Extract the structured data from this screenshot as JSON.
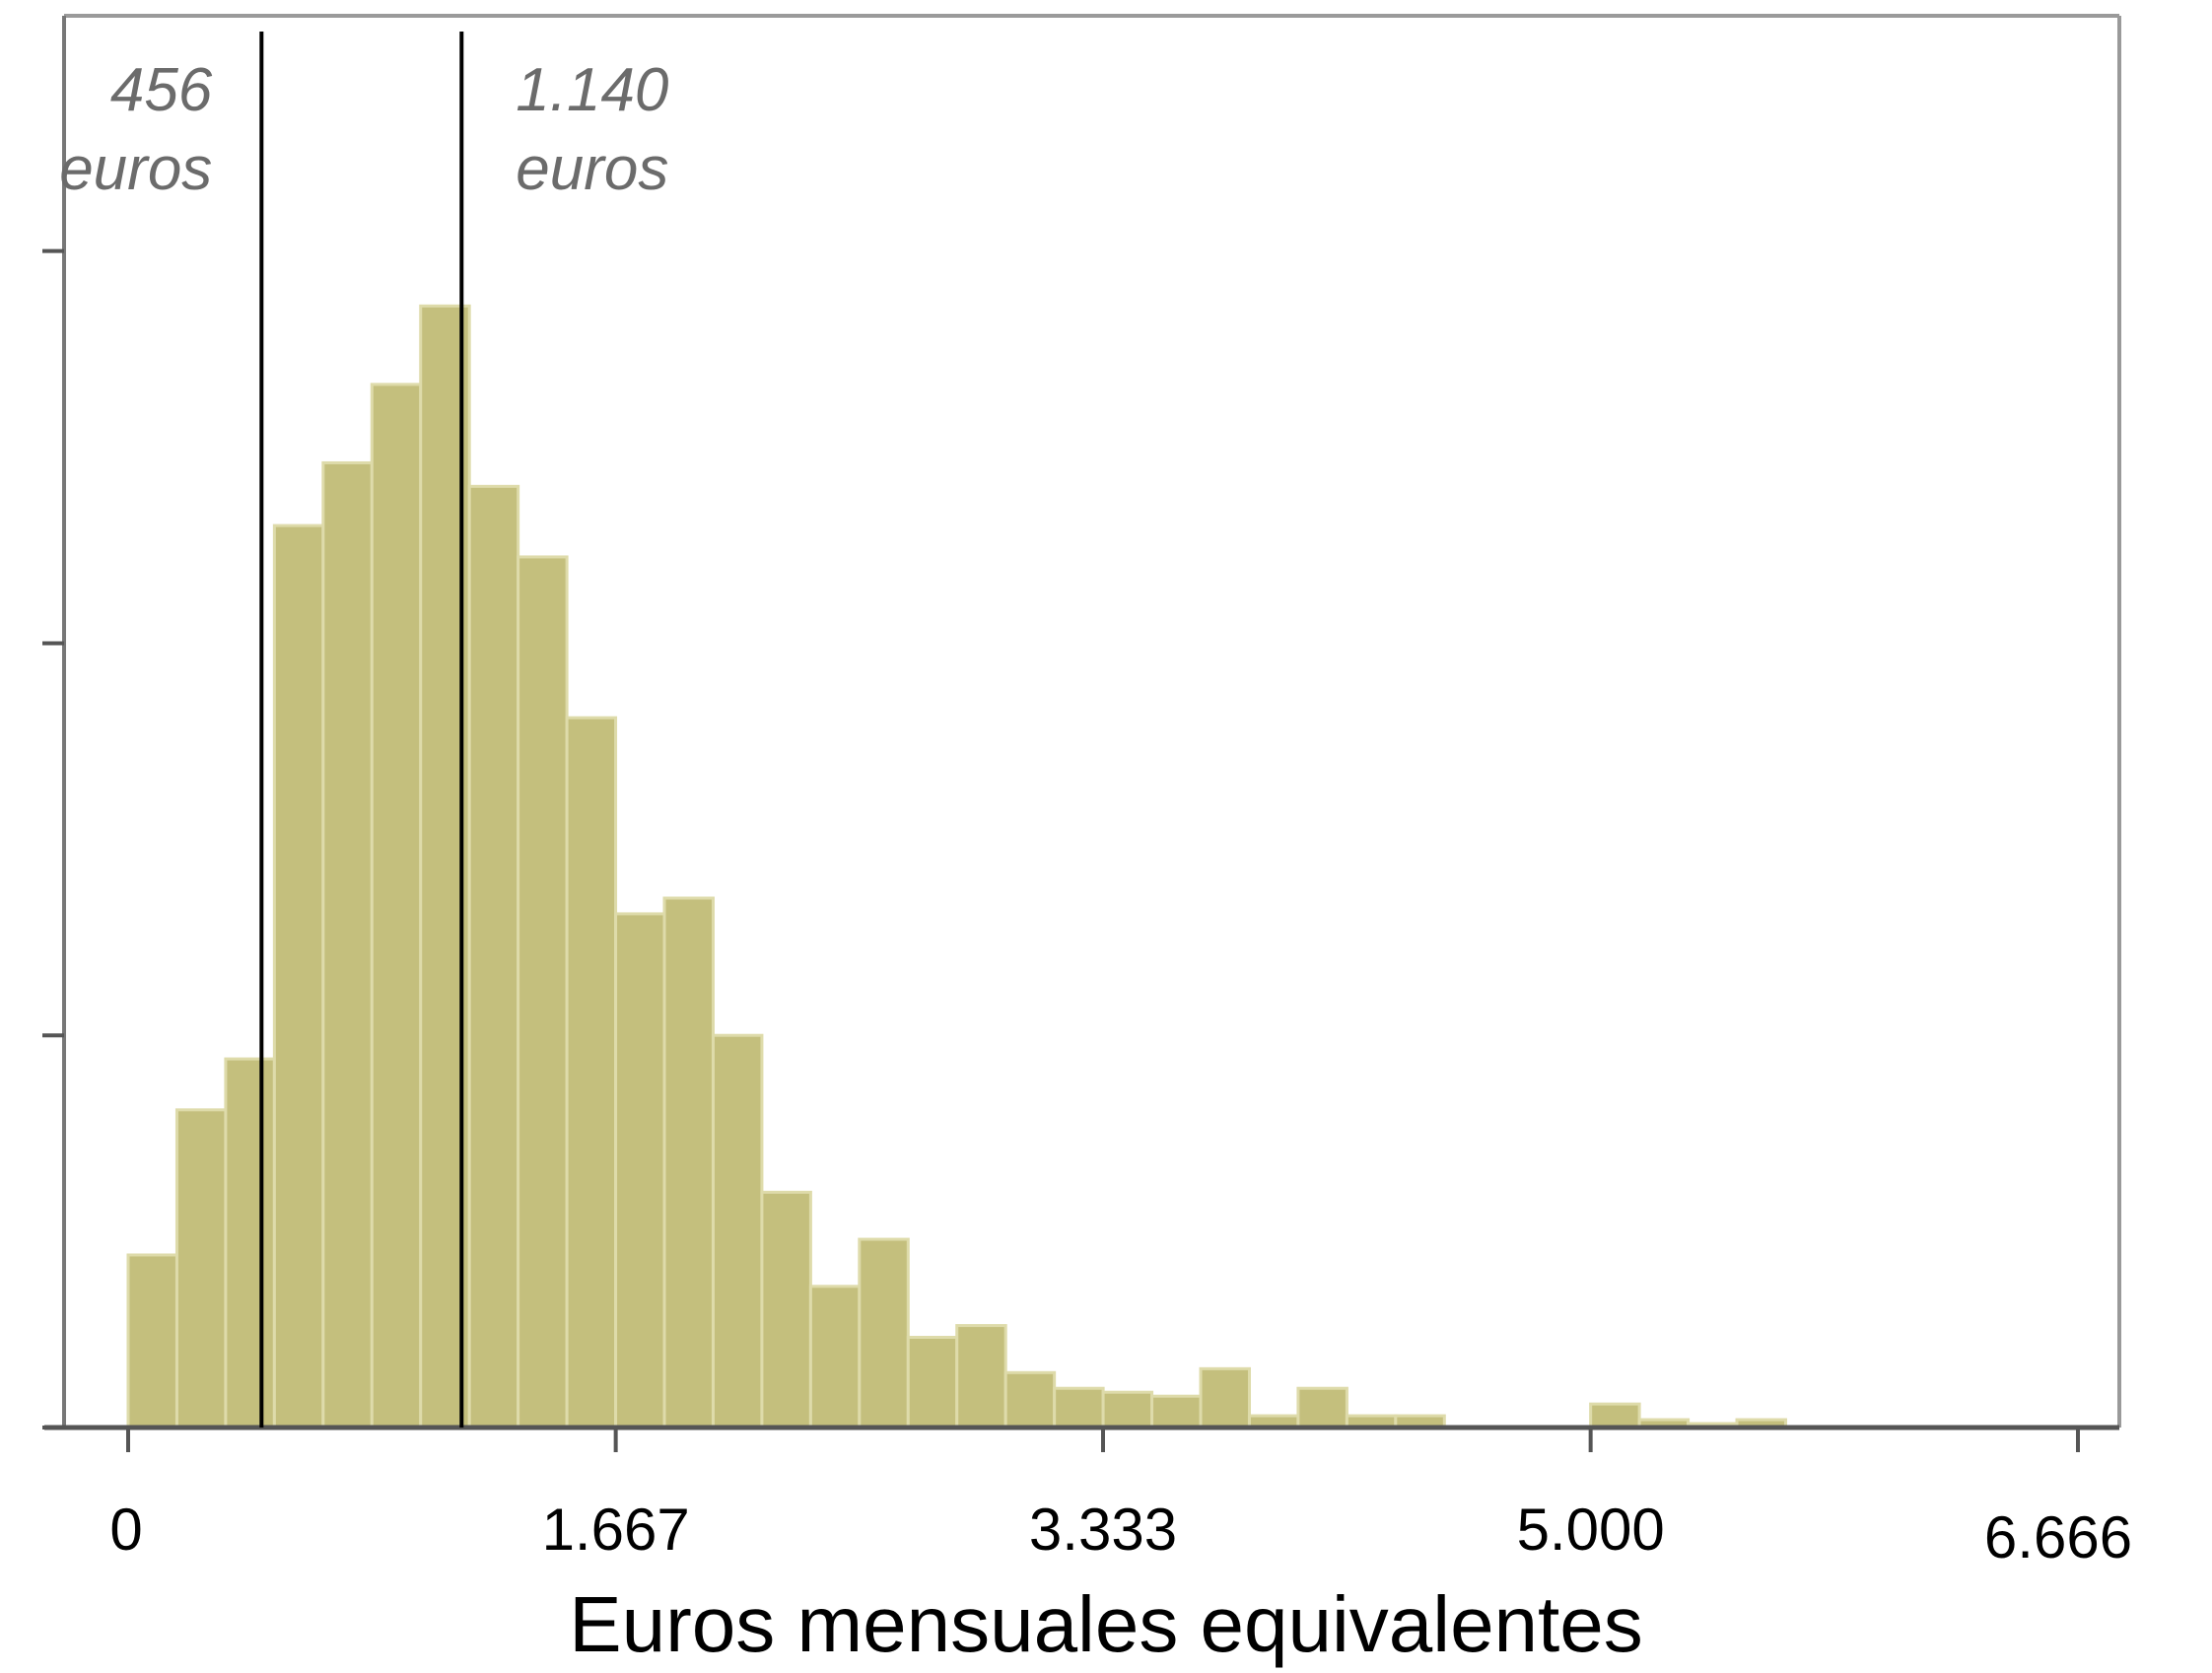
{
  "chart_data": {
    "type": "bar",
    "xlabel": "Euros mensuales equivalentes",
    "ylabel": "",
    "title": "",
    "bin_width": 166.7,
    "xlim": [
      0,
      6666
    ],
    "ylim": [
      0,
      360
    ],
    "x_ticks": [
      0,
      1667,
      3333,
      5000,
      6666
    ],
    "x_tick_labels": [
      "0",
      "1.667",
      "3.333",
      "5.000",
      "6.666"
    ],
    "y_ticks": [
      0,
      100,
      200,
      300
    ],
    "bins": [
      {
        "x": 0,
        "value": 44
      },
      {
        "x": 166.7,
        "value": 81
      },
      {
        "x": 333.3,
        "value": 94
      },
      {
        "x": 500.0,
        "value": 230
      },
      {
        "x": 666.7,
        "value": 246
      },
      {
        "x": 833.3,
        "value": 266
      },
      {
        "x": 1000.0,
        "value": 286
      },
      {
        "x": 1166.7,
        "value": 240
      },
      {
        "x": 1333.3,
        "value": 222
      },
      {
        "x": 1500.0,
        "value": 181
      },
      {
        "x": 1666.7,
        "value": 131
      },
      {
        "x": 1833.3,
        "value": 135
      },
      {
        "x": 2000.0,
        "value": 100
      },
      {
        "x": 2166.7,
        "value": 60
      },
      {
        "x": 2333.3,
        "value": 36
      },
      {
        "x": 2500.0,
        "value": 48
      },
      {
        "x": 2666.7,
        "value": 23
      },
      {
        "x": 2833.3,
        "value": 26
      },
      {
        "x": 3000.0,
        "value": 14
      },
      {
        "x": 3166.7,
        "value": 10
      },
      {
        "x": 3333.3,
        "value": 9
      },
      {
        "x": 3500.0,
        "value": 8
      },
      {
        "x": 3666.7,
        "value": 15
      },
      {
        "x": 3833.3,
        "value": 3
      },
      {
        "x": 4000.0,
        "value": 10
      },
      {
        "x": 4166.7,
        "value": 3
      },
      {
        "x": 4333.3,
        "value": 3
      },
      {
        "x": 4500.0,
        "value": 0
      },
      {
        "x": 4666.7,
        "value": 0
      },
      {
        "x": 4833.3,
        "value": 0
      },
      {
        "x": 5000.0,
        "value": 6
      },
      {
        "x": 5166.7,
        "value": 2
      },
      {
        "x": 5333.3,
        "value": 1
      },
      {
        "x": 5500.0,
        "value": 2
      }
    ],
    "annotations": [
      {
        "value": 456,
        "number_label": "456",
        "unit_label": "euros",
        "side": "left"
      },
      {
        "value": 1140,
        "number_label": "1.140",
        "unit_label": "euros",
        "side": "right"
      }
    ],
    "bar_color": "#c4bf7d",
    "bar_edge_color": "#dedbaa",
    "line_color": "#000000",
    "annotation_color": "#6b6b6b",
    "grid": false
  }
}
